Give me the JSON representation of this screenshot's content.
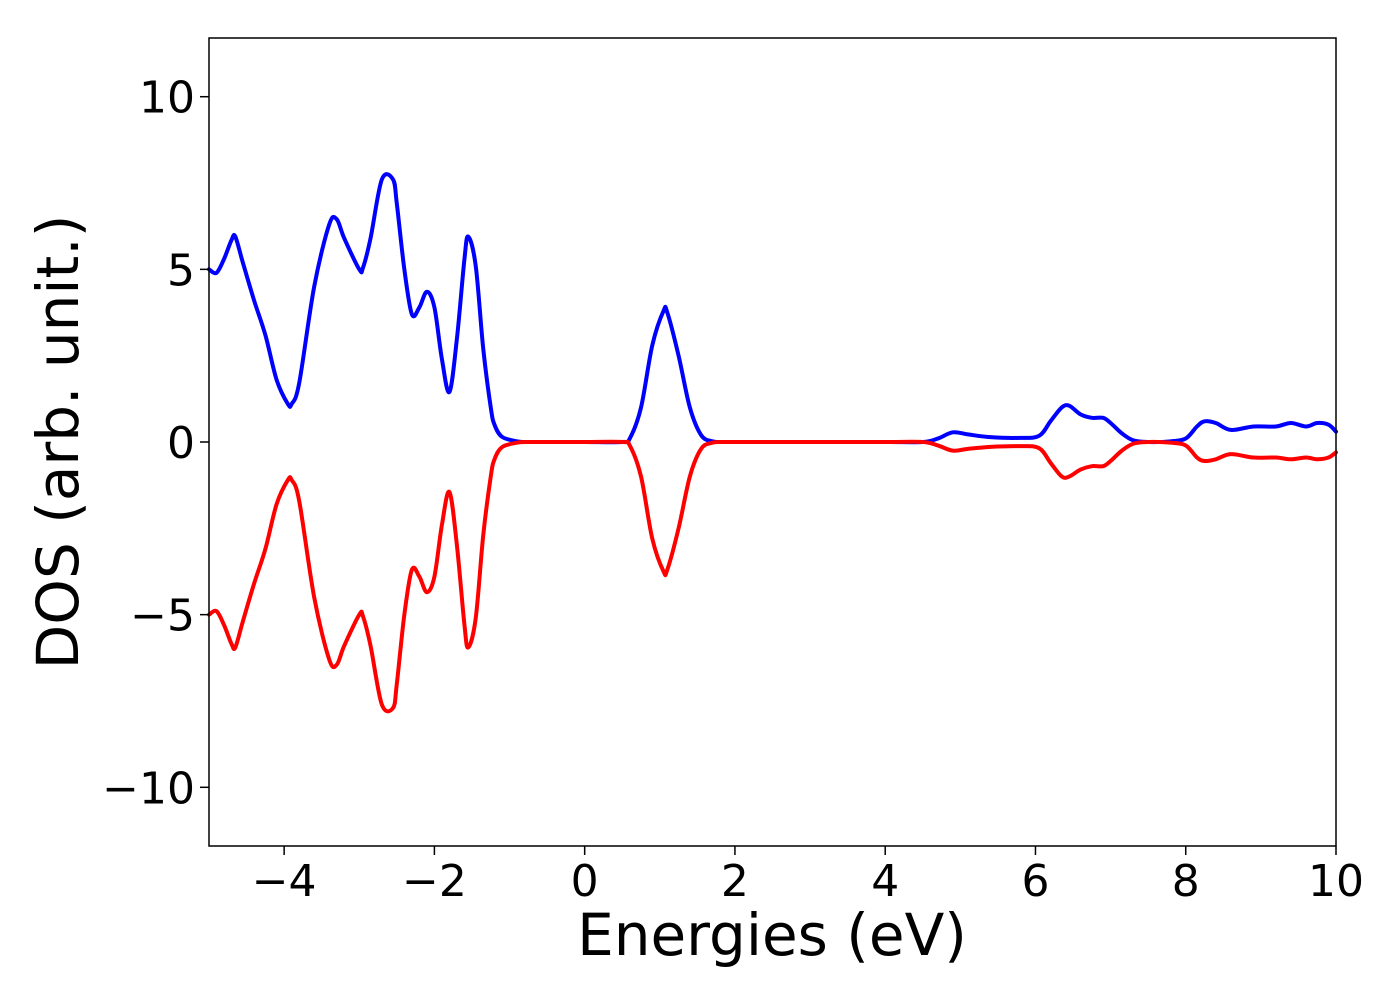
{
  "chart_data": {
    "type": "line",
    "title": "",
    "xlabel": "Energies (eV)",
    "ylabel": "DOS (arb. unit.)",
    "xlim": [
      -5,
      10
    ],
    "ylim": [
      -11.7,
      11.7
    ],
    "xticks": [
      -4,
      -2,
      0,
      2,
      4,
      6,
      8,
      10
    ],
    "xtick_labels": [
      "−4",
      "−2",
      "0",
      "2",
      "4",
      "6",
      "8",
      "10"
    ],
    "yticks": [
      -10,
      -5,
      0,
      5,
      10
    ],
    "ytick_labels": [
      "−10",
      "−5",
      "0",
      "5",
      "10"
    ],
    "grid": false,
    "legend": "none",
    "series": [
      {
        "color": "#0000ff",
        "x": [
          -5.0,
          -4.9,
          -4.8,
          -4.7,
          -4.65,
          -4.55,
          -4.4,
          -4.25,
          -4.1,
          -3.95,
          -3.9,
          -3.8,
          -3.6,
          -3.4,
          -3.3,
          -3.2,
          -3.0,
          -2.95,
          -2.85,
          -2.7,
          -2.55,
          -2.5,
          -2.4,
          -2.3,
          -2.2,
          -2.1,
          -2.0,
          -1.9,
          -1.8,
          -1.7,
          -1.6,
          -1.55,
          -1.45,
          -1.35,
          -1.25,
          -1.2,
          -1.1,
          -0.9,
          -0.75,
          -0.6,
          -0.5,
          0.0,
          0.5,
          0.6,
          0.75,
          0.9,
          1.05,
          1.1,
          1.25,
          1.4,
          1.55,
          1.7,
          1.85,
          2.0,
          3.0,
          4.0,
          4.5,
          4.7,
          4.9,
          5.1,
          5.4,
          5.8,
          6.05,
          6.2,
          6.35,
          6.45,
          6.6,
          6.75,
          6.9,
          7.0,
          7.15,
          7.3,
          7.5,
          7.8,
          8.0,
          8.15,
          8.25,
          8.4,
          8.6,
          8.9,
          9.2,
          9.4,
          9.6,
          9.75,
          9.9,
          10.0
        ],
        "y": [
          5.0,
          4.9,
          5.3,
          5.85,
          5.95,
          5.2,
          4.1,
          3.1,
          1.8,
          1.1,
          1.1,
          1.7,
          4.5,
          6.3,
          6.45,
          5.9,
          5.0,
          5.05,
          5.9,
          7.6,
          7.6,
          6.9,
          5.0,
          3.7,
          3.9,
          4.35,
          3.9,
          2.4,
          1.45,
          3.0,
          5.3,
          5.95,
          5.1,
          2.7,
          1.0,
          0.5,
          0.15,
          0.02,
          0.0,
          0.0,
          0.0,
          0.0,
          0.0,
          0.1,
          1.0,
          2.8,
          3.8,
          3.75,
          2.5,
          1.0,
          0.2,
          0.02,
          0.0,
          0.0,
          0.0,
          0.0,
          0.0,
          0.1,
          0.28,
          0.22,
          0.14,
          0.12,
          0.18,
          0.6,
          1.0,
          1.05,
          0.8,
          0.7,
          0.7,
          0.55,
          0.25,
          0.05,
          0.0,
          0.02,
          0.1,
          0.45,
          0.6,
          0.55,
          0.35,
          0.45,
          0.45,
          0.55,
          0.45,
          0.55,
          0.5,
          0.3
        ]
      },
      {
        "color": "#ff0000",
        "x": [
          -5.0,
          -4.9,
          -4.8,
          -4.7,
          -4.65,
          -4.55,
          -4.4,
          -4.25,
          -4.1,
          -3.95,
          -3.9,
          -3.8,
          -3.6,
          -3.4,
          -3.3,
          -3.2,
          -3.0,
          -2.95,
          -2.85,
          -2.7,
          -2.55,
          -2.5,
          -2.4,
          -2.3,
          -2.2,
          -2.1,
          -2.0,
          -1.9,
          -1.8,
          -1.7,
          -1.6,
          -1.55,
          -1.45,
          -1.35,
          -1.25,
          -1.2,
          -1.1,
          -0.9,
          -0.75,
          -0.6,
          -0.5,
          0.0,
          0.5,
          0.6,
          0.75,
          0.9,
          1.05,
          1.1,
          1.25,
          1.4,
          1.55,
          1.7,
          1.85,
          2.0,
          3.0,
          4.0,
          4.5,
          4.7,
          4.9,
          5.1,
          5.4,
          5.8,
          6.05,
          6.2,
          6.35,
          6.45,
          6.6,
          6.75,
          6.9,
          7.0,
          7.15,
          7.3,
          7.5,
          7.8,
          8.0,
          8.15,
          8.25,
          8.4,
          8.6,
          8.9,
          9.2,
          9.4,
          9.6,
          9.75,
          9.9,
          10.0
        ],
        "y": [
          -5.0,
          -4.9,
          -5.3,
          -5.85,
          -5.95,
          -5.2,
          -4.1,
          -3.1,
          -1.8,
          -1.1,
          -1.1,
          -1.7,
          -4.5,
          -6.3,
          -6.45,
          -5.9,
          -5.0,
          -5.05,
          -5.9,
          -7.6,
          -7.7,
          -7.0,
          -5.0,
          -3.7,
          -3.9,
          -4.35,
          -3.9,
          -2.4,
          -1.45,
          -3.0,
          -5.3,
          -5.95,
          -5.1,
          -2.7,
          -1.0,
          -0.5,
          -0.15,
          -0.02,
          0.0,
          0.0,
          0.0,
          0.0,
          0.0,
          -0.1,
          -1.0,
          -2.8,
          -3.75,
          -3.7,
          -2.5,
          -1.0,
          -0.2,
          -0.02,
          0.0,
          0.0,
          0.0,
          0.0,
          0.0,
          -0.1,
          -0.25,
          -0.2,
          -0.14,
          -0.12,
          -0.18,
          -0.6,
          -1.0,
          -1.0,
          -0.8,
          -0.7,
          -0.7,
          -0.55,
          -0.25,
          -0.05,
          0.0,
          -0.02,
          -0.1,
          -0.45,
          -0.55,
          -0.5,
          -0.35,
          -0.45,
          -0.45,
          -0.5,
          -0.45,
          -0.5,
          -0.45,
          -0.3
        ]
      }
    ]
  }
}
